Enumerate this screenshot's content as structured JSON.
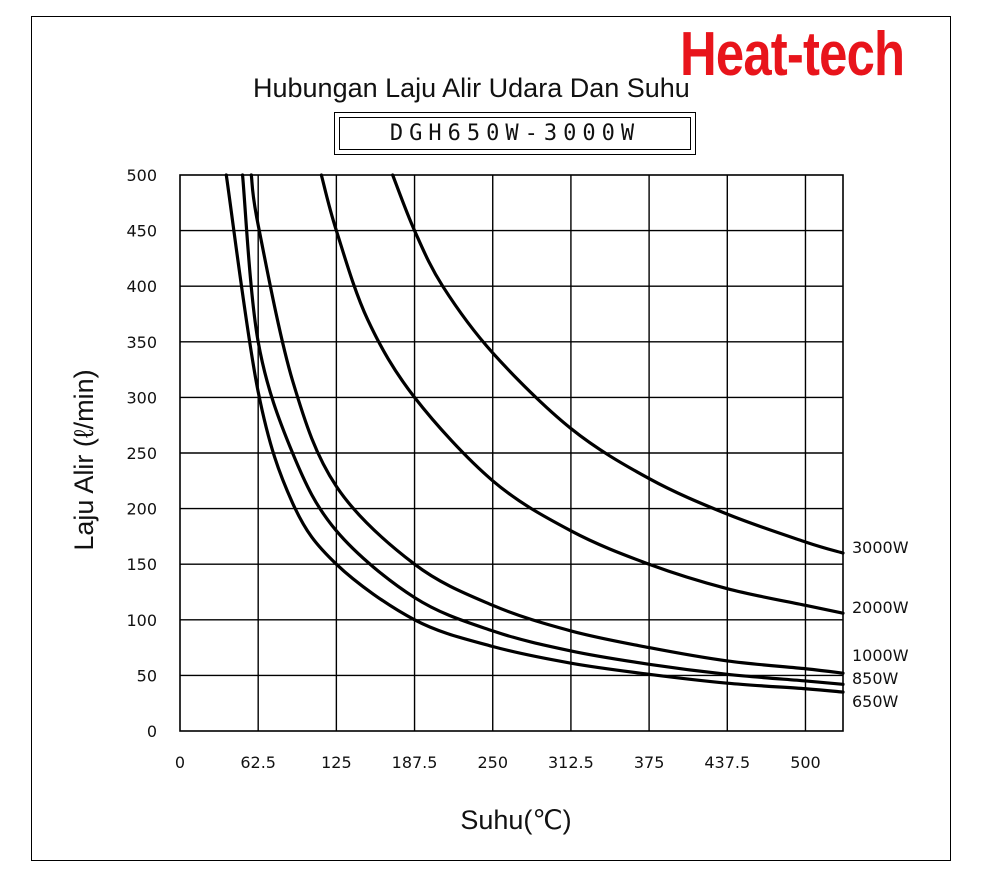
{
  "brand": "Heat-tech",
  "colors": {
    "brand": "#e8141b",
    "line": "#000000",
    "grid": "#000000"
  },
  "chart_data": {
    "type": "line",
    "title": "Hubungan Laju Alir Udara Dan Suhu",
    "subtitle": "DGH650W-3000W",
    "xlabel": "Suhu(℃)",
    "ylabel": "Laju Alir (ℓ/min)",
    "xlim": [
      0,
      530
    ],
    "ylim": [
      0,
      500
    ],
    "x_ticks": [
      0,
      62.5,
      125,
      187.5,
      250,
      312.5,
      375,
      437.5,
      500
    ],
    "x_tick_labels": [
      "0",
      "62.5",
      "125",
      "187.5",
      "250",
      "312.5",
      "375",
      "437.5",
      "500"
    ],
    "y_ticks": [
      0,
      50,
      100,
      150,
      200,
      250,
      300,
      350,
      400,
      450,
      500
    ],
    "y_tick_labels": [
      "0",
      "50",
      "100",
      "150",
      "200",
      "250",
      "300",
      "350",
      "400",
      "450",
      "500"
    ],
    "grid": true,
    "legend": "labels at right end of each line",
    "series": [
      {
        "name": "3000W",
        "points": [
          [
            170,
            500
          ],
          [
            187.5,
            450
          ],
          [
            210,
            400
          ],
          [
            250,
            340
          ],
          [
            312.5,
            272
          ],
          [
            375,
            227
          ],
          [
            437.5,
            195
          ],
          [
            500,
            170
          ],
          [
            530,
            160
          ]
        ]
      },
      {
        "name": "2000W",
        "points": [
          [
            113,
            500
          ],
          [
            125,
            450
          ],
          [
            150,
            370
          ],
          [
            187.5,
            300
          ],
          [
            250,
            225
          ],
          [
            312.5,
            180
          ],
          [
            375,
            150
          ],
          [
            437.5,
            128
          ],
          [
            500,
            113
          ],
          [
            530,
            106
          ]
        ]
      },
      {
        "name": "1000W",
        "points": [
          [
            57,
            500
          ],
          [
            62.5,
            455
          ],
          [
            90,
            315
          ],
          [
            125,
            220
          ],
          [
            187.5,
            150
          ],
          [
            250,
            113
          ],
          [
            312.5,
            90
          ],
          [
            375,
            75
          ],
          [
            437.5,
            63
          ],
          [
            500,
            56
          ],
          [
            530,
            52
          ]
        ]
      },
      {
        "name": "850W",
        "points": [
          [
            50,
            500
          ],
          [
            62.5,
            350
          ],
          [
            90,
            250
          ],
          [
            125,
            180
          ],
          [
            187.5,
            120
          ],
          [
            250,
            90
          ],
          [
            312.5,
            72
          ],
          [
            375,
            60
          ],
          [
            437.5,
            51
          ],
          [
            500,
            45
          ],
          [
            530,
            42
          ]
        ]
      },
      {
        "name": "650W",
        "points": [
          [
            37,
            500
          ],
          [
            62.5,
            305
          ],
          [
            90,
            205
          ],
          [
            125,
            150
          ],
          [
            187.5,
            100
          ],
          [
            250,
            76
          ],
          [
            312.5,
            61
          ],
          [
            375,
            51
          ],
          [
            437.5,
            43
          ],
          [
            500,
            38
          ],
          [
            530,
            35
          ]
        ]
      }
    ]
  }
}
